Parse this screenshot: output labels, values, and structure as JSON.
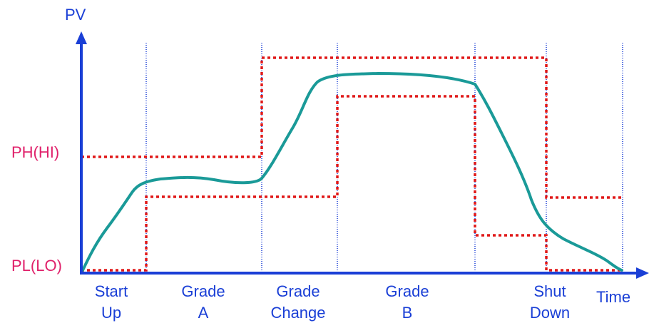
{
  "axes": {
    "y_label": "PV",
    "x_label": "Time"
  },
  "limit_labels": {
    "high": "PH(HI)",
    "low": "PL(LO)"
  },
  "phases": [
    {
      "line1": "Start",
      "line2": "Up"
    },
    {
      "line1": "Grade",
      "line2": "A"
    },
    {
      "line1": "Grade",
      "line2": "Change"
    },
    {
      "line1": "Grade",
      "line2": "B"
    },
    {
      "line1": "Shut",
      "line2": "Down"
    }
  ],
  "colors": {
    "axis": "#1a3fd6",
    "phase_divider": "#1a3fd6",
    "axis_text": "#1a3fd6",
    "limit_text": "#e0206a",
    "limit_line": "#e01818",
    "pv_curve": "#1a9a98"
  }
}
